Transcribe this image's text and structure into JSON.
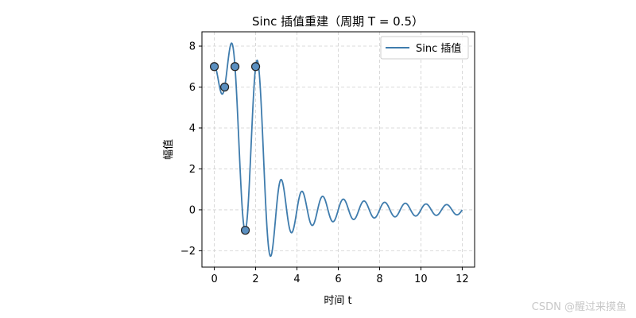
{
  "chart_data": {
    "type": "line",
    "title": "Sinc 插值重建（周期 T = 0.5）",
    "xlabel": "时间 t",
    "ylabel": "幅值",
    "xlim": [
      -0.6,
      12.6
    ],
    "ylim": [
      -2.8,
      8.7
    ],
    "xticks": [
      0,
      2,
      4,
      6,
      8,
      10,
      12
    ],
    "yticks": [
      -2,
      0,
      2,
      4,
      6,
      8
    ],
    "ytick_labels": [
      "−2",
      "0",
      "2",
      "4",
      "6",
      "8"
    ],
    "grid": true,
    "legend": {
      "position": "top-right",
      "entries": [
        "Sinc 插值"
      ]
    },
    "sample_period": 0.5,
    "series": [
      {
        "name": "Sinc 插值",
        "kind": "line",
        "color": "#3f7cad",
        "x_range": [
          0,
          12
        ]
      },
      {
        "name": "",
        "kind": "scatter",
        "color": "#5a8fc0",
        "x": [
          0,
          0.5,
          1,
          1.5,
          2
        ],
        "y": [
          7,
          6,
          7,
          -1,
          7
        ]
      }
    ]
  },
  "watermark": "CSDN @醒过来摸鱼"
}
